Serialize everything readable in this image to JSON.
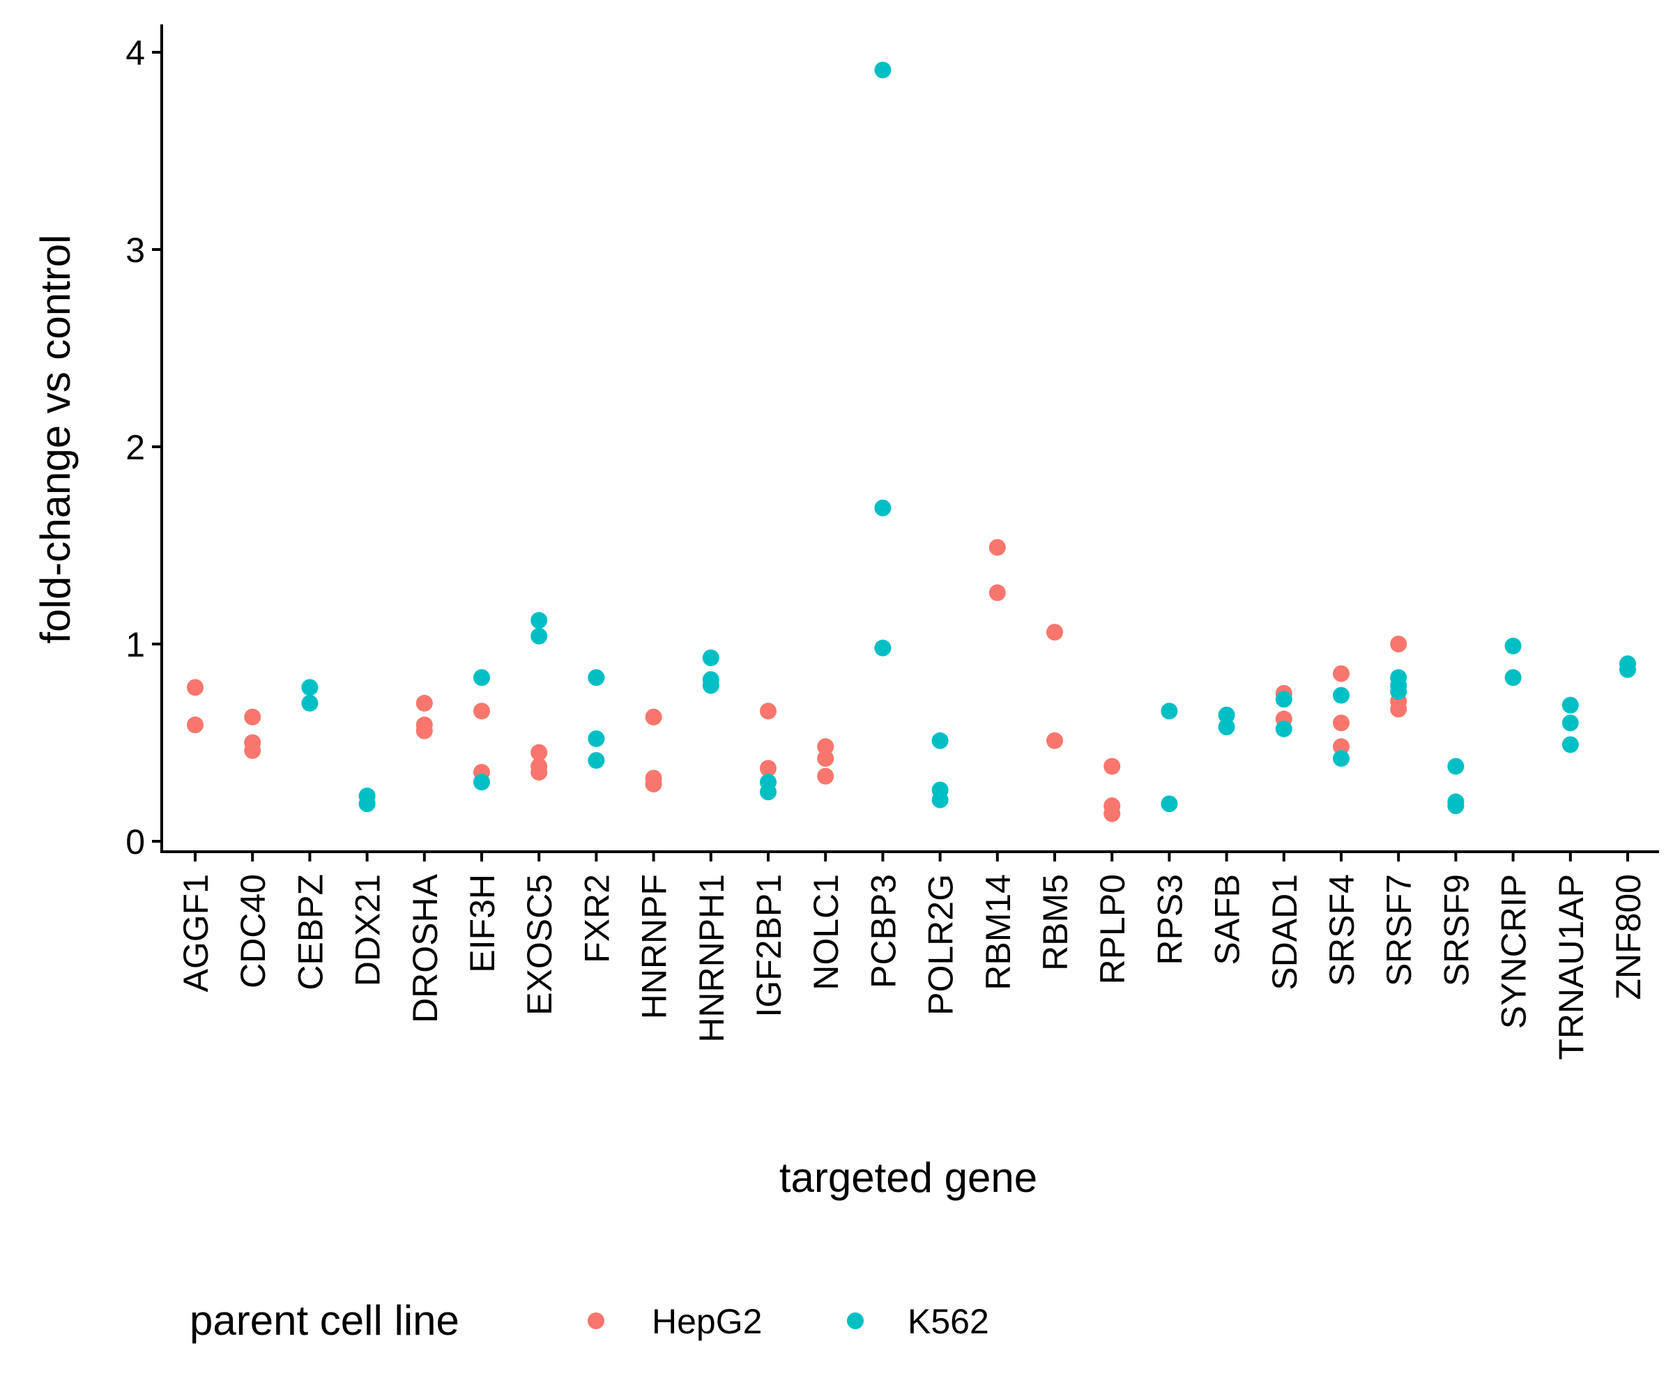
{
  "chart_data": {
    "type": "scatter",
    "xlabel": "targeted gene",
    "ylabel": "fold-change vs control",
    "ylim": [
      0,
      4
    ],
    "yticks": [
      0,
      1,
      2,
      3,
      4
    ],
    "categories": [
      "AGGF1",
      "CDC40",
      "CEBPZ",
      "DDX21",
      "DROSHA",
      "EIF3H",
      "EXOSC5",
      "FXR2",
      "HNRNPF",
      "HNRNPH1",
      "IGF2BP1",
      "NOLC1",
      "PCBP3",
      "POLR2G",
      "RBM14",
      "RBM5",
      "RPLP0",
      "RPS3",
      "SAFB",
      "SDAD1",
      "SRSF4",
      "SRSF7",
      "SRSF9",
      "SYNCRIP",
      "TRNAU1AP",
      "ZNF800"
    ],
    "legend": {
      "title": "parent cell line",
      "position": "bottom"
    },
    "grid": false,
    "series": [
      {
        "name": "HepG2",
        "color": "#F8766D",
        "points": [
          [
            "AGGF1",
            0.78
          ],
          [
            "AGGF1",
            0.59
          ],
          [
            "CDC40",
            0.63
          ],
          [
            "CDC40",
            0.5
          ],
          [
            "CDC40",
            0.46
          ],
          [
            "DROSHA",
            0.7
          ],
          [
            "DROSHA",
            0.59
          ],
          [
            "DROSHA",
            0.56
          ],
          [
            "EIF3H",
            0.66
          ],
          [
            "EIF3H",
            0.35
          ],
          [
            "EXOSC5",
            0.45
          ],
          [
            "EXOSC5",
            0.38
          ],
          [
            "EXOSC5",
            0.35
          ],
          [
            "HNRNPF",
            0.63
          ],
          [
            "HNRNPF",
            0.32
          ],
          [
            "HNRNPF",
            0.29
          ],
          [
            "IGF2BP1",
            0.66
          ],
          [
            "IGF2BP1",
            0.37
          ],
          [
            "NOLC1",
            0.48
          ],
          [
            "NOLC1",
            0.42
          ],
          [
            "NOLC1",
            0.33
          ],
          [
            "RBM14",
            1.49
          ],
          [
            "RBM14",
            1.26
          ],
          [
            "RBM5",
            1.06
          ],
          [
            "RBM5",
            0.51
          ],
          [
            "RPLP0",
            0.38
          ],
          [
            "RPLP0",
            0.18
          ],
          [
            "RPLP0",
            0.14
          ],
          [
            "SDAD1",
            0.75
          ],
          [
            "SDAD1",
            0.62
          ],
          [
            "SRSF4",
            0.85
          ],
          [
            "SRSF4",
            0.6
          ],
          [
            "SRSF4",
            0.48
          ],
          [
            "SRSF7",
            1.0
          ],
          [
            "SRSF7",
            0.71
          ],
          [
            "SRSF7",
            0.67
          ]
        ]
      },
      {
        "name": "K562",
        "color": "#00BFC4",
        "points": [
          [
            "CEBPZ",
            0.78
          ],
          [
            "CEBPZ",
            0.7
          ],
          [
            "DDX21",
            0.23
          ],
          [
            "DDX21",
            0.19
          ],
          [
            "EIF3H",
            0.83
          ],
          [
            "EIF3H",
            0.3
          ],
          [
            "EXOSC5",
            1.12
          ],
          [
            "EXOSC5",
            1.04
          ],
          [
            "FXR2",
            0.83
          ],
          [
            "FXR2",
            0.52
          ],
          [
            "FXR2",
            0.41
          ],
          [
            "HNRNPH1",
            0.93
          ],
          [
            "HNRNPH1",
            0.82
          ],
          [
            "HNRNPH1",
            0.79
          ],
          [
            "IGF2BP1",
            0.3
          ],
          [
            "IGF2BP1",
            0.25
          ],
          [
            "PCBP3",
            3.91
          ],
          [
            "PCBP3",
            1.69
          ],
          [
            "PCBP3",
            0.98
          ],
          [
            "POLR2G",
            0.51
          ],
          [
            "POLR2G",
            0.26
          ],
          [
            "POLR2G",
            0.21
          ],
          [
            "RPS3",
            0.66
          ],
          [
            "RPS3",
            0.19
          ],
          [
            "SAFB",
            0.64
          ],
          [
            "SAFB",
            0.58
          ],
          [
            "SDAD1",
            0.72
          ],
          [
            "SDAD1",
            0.57
          ],
          [
            "SRSF4",
            0.74
          ],
          [
            "SRSF4",
            0.42
          ],
          [
            "SRSF7",
            0.83
          ],
          [
            "SRSF7",
            0.79
          ],
          [
            "SRSF7",
            0.76
          ],
          [
            "SRSF9",
            0.38
          ],
          [
            "SRSF9",
            0.2
          ],
          [
            "SRSF9",
            0.18
          ],
          [
            "SYNCRIP",
            0.99
          ],
          [
            "SYNCRIP",
            0.83
          ],
          [
            "TRNAU1AP",
            0.69
          ],
          [
            "TRNAU1AP",
            0.6
          ],
          [
            "TRNAU1AP",
            0.49
          ],
          [
            "ZNF800",
            0.9
          ],
          [
            "ZNF800",
            0.87
          ]
        ]
      }
    ]
  }
}
